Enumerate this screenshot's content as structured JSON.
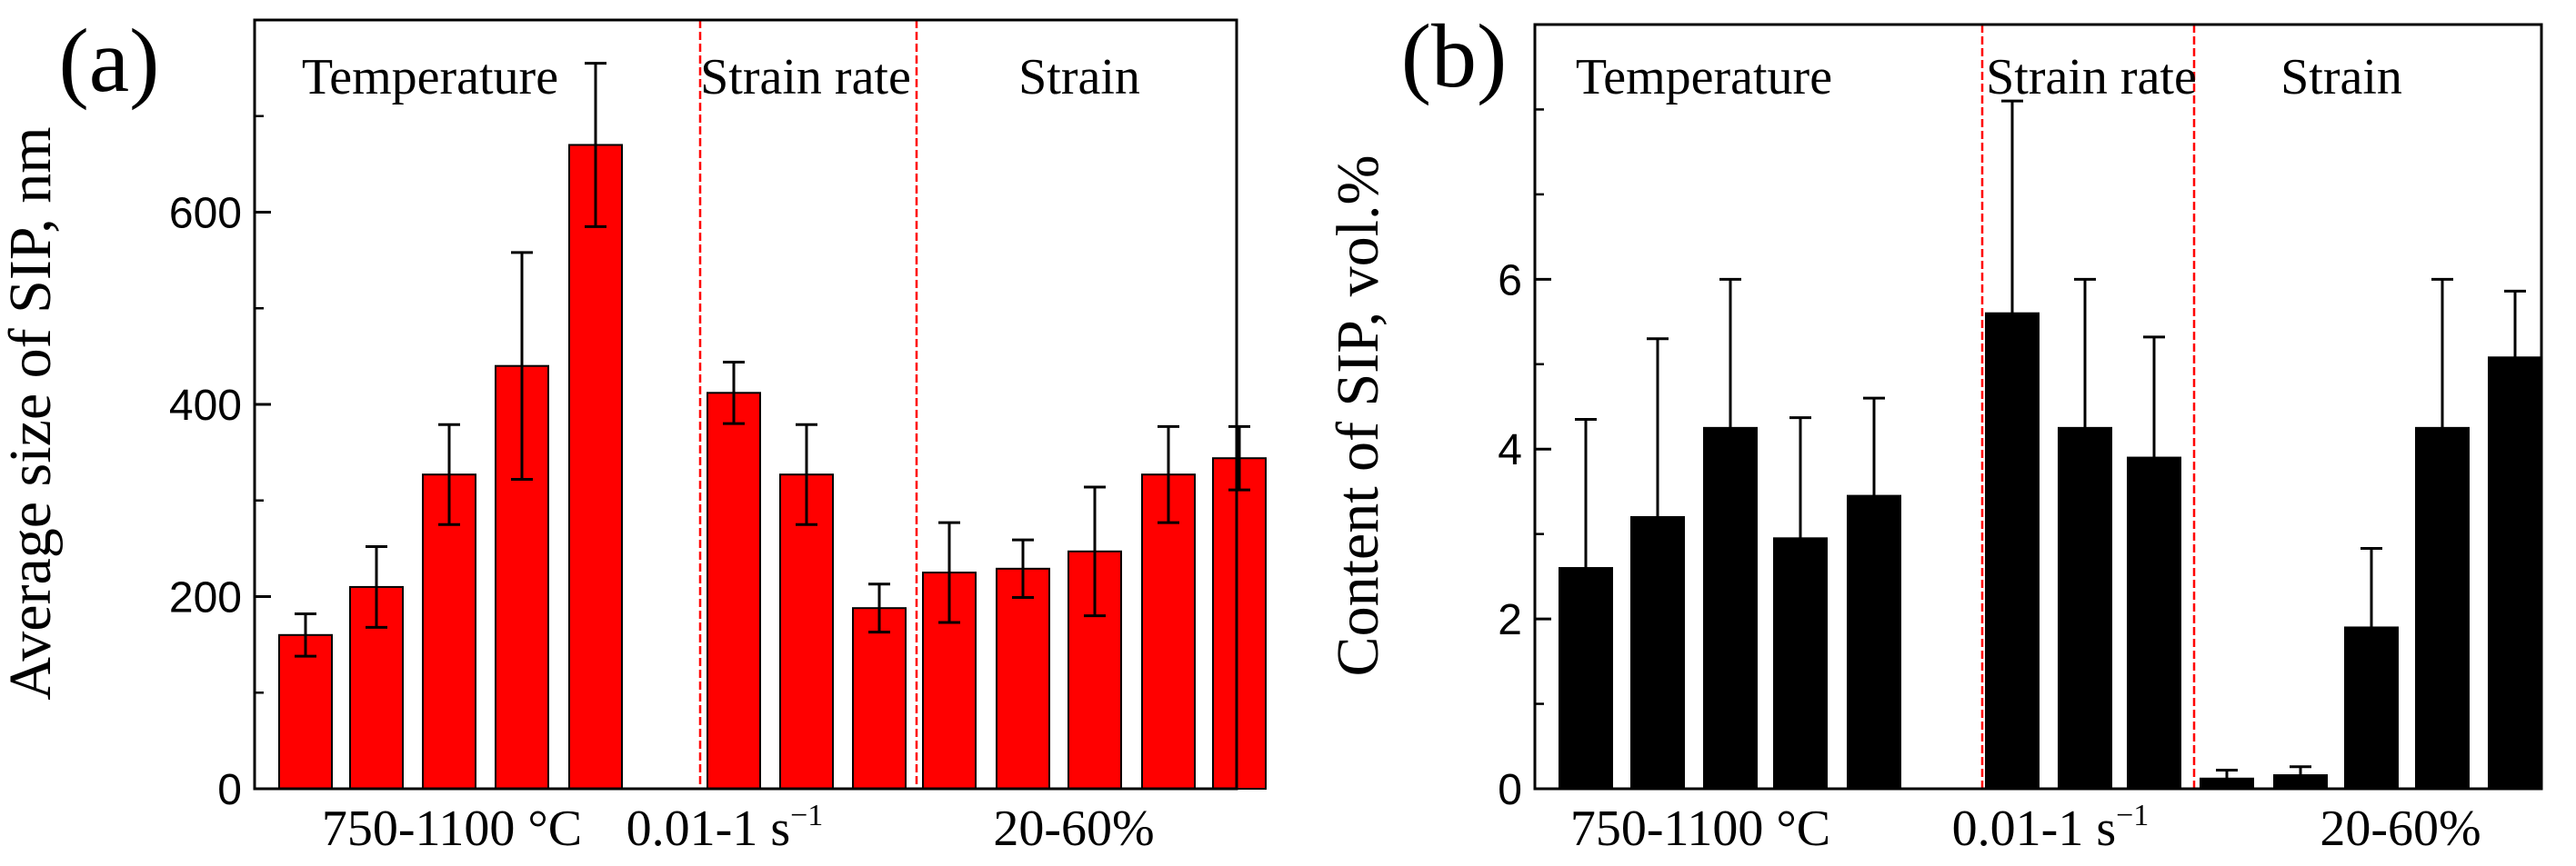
{
  "colors": {
    "panel_a_bar": "#ff0000",
    "panel_b_bar": "#000000",
    "divider": "#ff0000",
    "axis": "#000000"
  },
  "chart_data": [
    {
      "type": "bar",
      "panel_label": "(a)",
      "ylabel": "Average size of SIP, nm",
      "ylim": [
        0,
        800
      ],
      "yticks": [
        0,
        200,
        400,
        600
      ],
      "groups": [
        {
          "label": "Temperature",
          "xlabel": "750-1100 °C",
          "bar_count": 5
        },
        {
          "label": "Strain rate",
          "xlabel": "0.01-1 s",
          "xlabel_sup": "−1",
          "bar_count": 3
        },
        {
          "label": "Strain",
          "xlabel": "20-60%",
          "bar_count": 5
        }
      ],
      "values": [
        160,
        210,
        327,
        440,
        670,
        412,
        327,
        188,
        225,
        229,
        247,
        327,
        344
      ],
      "errors": [
        22,
        42,
        52,
        118,
        85,
        32,
        52,
        25,
        52,
        30,
        67,
        50,
        33
      ]
    },
    {
      "type": "bar",
      "panel_label": "(b)",
      "ylabel": "Content of SIP, vol.%",
      "ylim": [
        0,
        9
      ],
      "yticks": [
        0,
        2,
        4,
        6
      ],
      "groups": [
        {
          "label": "Temperature",
          "xlabel": "750-1100 °C",
          "bar_count": 5
        },
        {
          "label": "Strain rate",
          "xlabel": "0.01-1 s",
          "xlabel_sup": "−1",
          "bar_count": 3
        },
        {
          "label": "Strain",
          "xlabel": "20-60%",
          "bar_count": 5
        }
      ],
      "values": [
        2.6,
        3.2,
        4.25,
        2.95,
        3.45,
        5.6,
        4.25,
        3.9,
        0.12,
        0.16,
        1.9,
        4.25,
        5.08
      ],
      "errors": [
        1.75,
        2.1,
        1.75,
        1.42,
        1.15,
        2.5,
        1.75,
        1.42,
        0.1,
        0.1,
        0.93,
        1.75,
        0.78
      ]
    }
  ]
}
